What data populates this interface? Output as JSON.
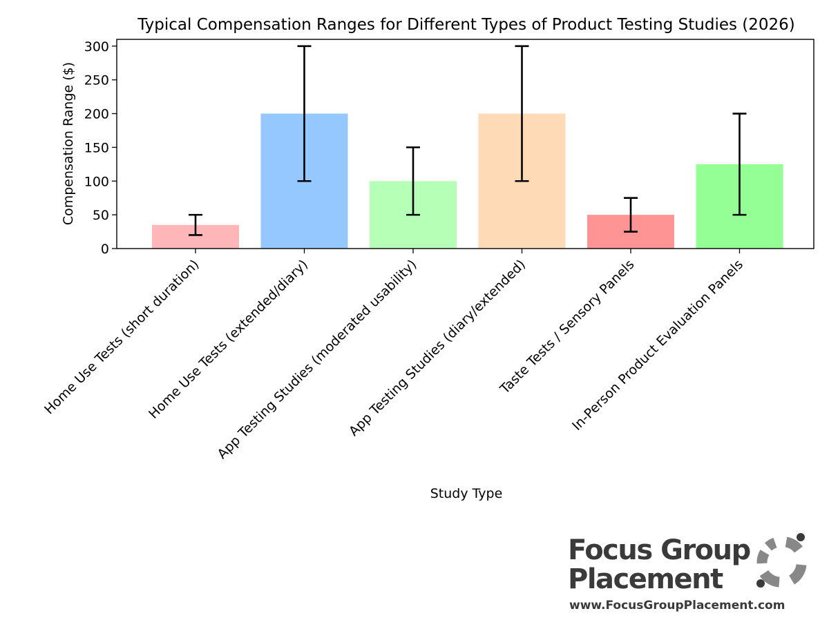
{
  "chart_data": {
    "type": "bar",
    "title": "Typical Compensation Ranges for Different Types of Product Testing Studies (2026)",
    "xlabel": "Study Type",
    "ylabel": "Compensation Range ($)",
    "ylim": [
      0,
      310
    ],
    "yticks": [
      0,
      50,
      100,
      150,
      200,
      250,
      300
    ],
    "grid": false,
    "legend": "none",
    "categories": [
      "Home Use Tests (short duration)",
      "Home Use Tests (extended/diary)",
      "App Testing Studies (moderated usability)",
      "App Testing Studies (diary/extended)",
      "Taste Tests / Sensory Panels",
      "In-Person Product Evaluation Panels"
    ],
    "values": [
      35,
      200,
      100,
      200,
      50,
      125
    ],
    "error_low": [
      20,
      100,
      50,
      100,
      25,
      50
    ],
    "error_high": [
      50,
      300,
      150,
      300,
      75,
      200
    ],
    "colors": [
      "#ffb6b9",
      "#94c8ff",
      "#b6ffb6",
      "#ffdab6",
      "#ff9494",
      "#94ff94"
    ]
  },
  "logo": {
    "line1": "Focus Group",
    "line2": "Placement",
    "url": "www.FocusGroupPlacement.com",
    "text_color": "#3a3a3a",
    "mark_color": "#888888"
  }
}
